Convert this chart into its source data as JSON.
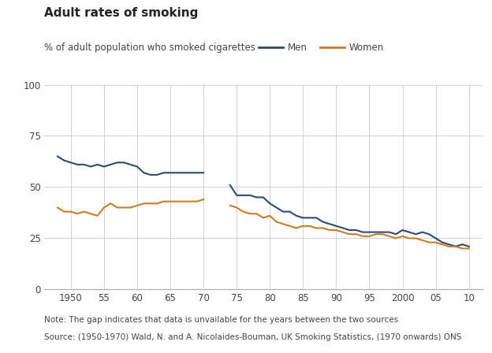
{
  "title": "Adult rates of smoking",
  "subtitle": "% of adult population who smoked cigarettes",
  "note": "Note: The gap indicates that data is unvailable for the years between the two sources",
  "source": "Source: (1950-1970) Wald, N. and A. Nicolaides-Bouman, UK Smoking Statistics, (1970 onwards) ONS",
  "men_color": "#2e4a6e",
  "women_color": "#c87d2a",
  "background_color": "#ffffff",
  "grid_color": "#cccccc",
  "men_series1": {
    "x": [
      1948,
      1949,
      1950,
      1951,
      1952,
      1953,
      1954,
      1955,
      1956,
      1957,
      1958,
      1959,
      1960,
      1961,
      1962,
      1963,
      1964,
      1965,
      1966,
      1967,
      1968,
      1969,
      1970
    ],
    "y": [
      65,
      63,
      62,
      61,
      61,
      60,
      61,
      60,
      61,
      62,
      62,
      61,
      60,
      57,
      56,
      56,
      57,
      57,
      57,
      57,
      57,
      57,
      57
    ]
  },
  "women_series1": {
    "x": [
      1948,
      1949,
      1950,
      1951,
      1952,
      1953,
      1954,
      1955,
      1956,
      1957,
      1958,
      1959,
      1960,
      1961,
      1962,
      1963,
      1964,
      1965,
      1966,
      1967,
      1968,
      1969,
      1970
    ],
    "y": [
      40,
      38,
      38,
      37,
      38,
      37,
      36,
      40,
      42,
      40,
      40,
      40,
      41,
      42,
      42,
      42,
      43,
      43,
      43,
      43,
      43,
      43,
      44
    ]
  },
  "men_series2": {
    "x": [
      1974,
      1975,
      1976,
      1977,
      1978,
      1979,
      1980,
      1981,
      1982,
      1983,
      1984,
      1985,
      1986,
      1987,
      1988,
      1989,
      1990,
      1991,
      1992,
      1993,
      1994,
      1995,
      1996,
      1997,
      1998,
      1999,
      2000,
      2001,
      2002,
      2003,
      2004,
      2005,
      2006,
      2007,
      2008,
      2009,
      2010
    ],
    "y": [
      51,
      46,
      46,
      46,
      45,
      45,
      42,
      40,
      38,
      38,
      36,
      35,
      35,
      35,
      33,
      32,
      31,
      30,
      29,
      29,
      28,
      28,
      28,
      28,
      28,
      27,
      29,
      28,
      27,
      28,
      27,
      25,
      23,
      22,
      21,
      22,
      21
    ]
  },
  "women_series2": {
    "x": [
      1974,
      1975,
      1976,
      1977,
      1978,
      1979,
      1980,
      1981,
      1982,
      1983,
      1984,
      1985,
      1986,
      1987,
      1988,
      1989,
      1990,
      1991,
      1992,
      1993,
      1994,
      1995,
      1996,
      1997,
      1998,
      1999,
      2000,
      2001,
      2002,
      2003,
      2004,
      2005,
      2006,
      2007,
      2008,
      2009,
      2010
    ],
    "y": [
      41,
      40,
      38,
      37,
      37,
      35,
      36,
      33,
      32,
      31,
      30,
      31,
      31,
      30,
      30,
      29,
      29,
      28,
      27,
      27,
      26,
      26,
      27,
      27,
      26,
      25,
      26,
      25,
      25,
      24,
      23,
      23,
      22,
      21,
      21,
      20,
      20
    ]
  },
  "xlim": [
    1946,
    2012
  ],
  "ylim": [
    0,
    100
  ],
  "yticks": [
    0,
    25,
    50,
    75,
    100
  ],
  "xticks": [
    1950,
    1955,
    1960,
    1965,
    1970,
    1975,
    1980,
    1985,
    1990,
    1995,
    2000,
    2005,
    2010
  ],
  "xticklabels": [
    "1950",
    "55",
    "60",
    "65",
    "70",
    "75",
    "80",
    "85",
    "90",
    "95",
    "2000",
    "05",
    "10"
  ],
  "legend_labels": [
    "Men",
    "Women"
  ],
  "line_width": 1.5,
  "title_fontsize": 11,
  "subtitle_fontsize": 8.5,
  "tick_fontsize": 8.5,
  "note_fontsize": 7.5
}
